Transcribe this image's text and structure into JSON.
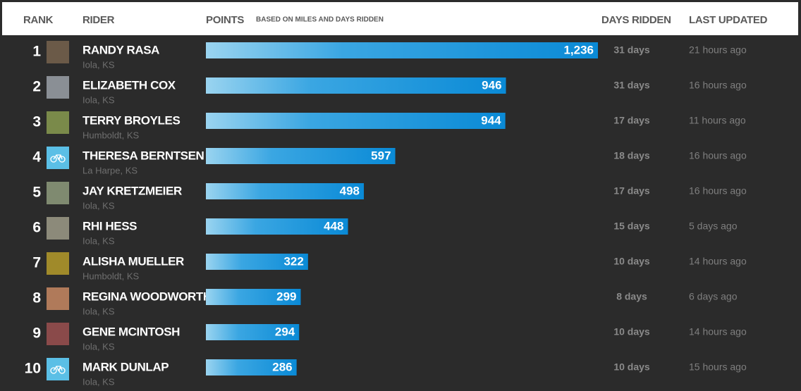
{
  "header": {
    "rank": "RANK",
    "rider": "RIDER",
    "points": "POINTS",
    "points_note": "BASED ON MILES AND DAYS RIDDEN",
    "days": "DAYS RIDDEN",
    "updated": "LAST UPDATED"
  },
  "table": {
    "rows": [
      {
        "rank": 1,
        "name": "RANDY RASA",
        "location": "Iola, KS",
        "points": {
          "value": 1236,
          "label": "1,236"
        },
        "days": "31 days",
        "updated": "21 hours ago"
      },
      {
        "rank": 2,
        "name": "ELIZABETH COX",
        "location": "Iola, KS",
        "points": 946,
        "days": "31 days",
        "updated": "16 hours ago"
      },
      {
        "rank": 3,
        "name": "TERRY BROYLES",
        "location": "Humboldt, KS",
        "points": 944,
        "days": "17 days",
        "updated": "11 hours ago"
      },
      {
        "rank": 4,
        "name": "THERESA BERNTSEN",
        "location": "La Harpe, KS",
        "points": 597,
        "days": "18 days",
        "updated": "16 hours ago"
      },
      {
        "rank": 5,
        "name": "JAY KRETZMEIER",
        "location": "Iola, KS",
        "points": 498,
        "days": "17 days",
        "updated": "16 hours ago"
      },
      {
        "rank": 6,
        "name": "RHI HESS",
        "location": "Iola, KS",
        "points": 448,
        "days": "15 days",
        "updated": "5 days ago"
      },
      {
        "rank": 7,
        "name": "ALISHA MUELLER",
        "location": "Humboldt, KS",
        "points": 322,
        "days": "10 days",
        "updated": "14 hours ago"
      },
      {
        "rank": 8,
        "name": "REGINA WOODWORTH",
        "location": "Iola, KS",
        "points": 299,
        "days": "8 days",
        "updated": "6 days ago"
      },
      {
        "rank": 9,
        "name": "GENE MCINTOSH",
        "location": "Iola, KS",
        "points": 294,
        "days": "10 days",
        "updated": "14 hours ago"
      },
      {
        "rank": 10,
        "name": "MARK DUNLAP",
        "location": "Iola, KS",
        "points": 286,
        "days": "10 days",
        "updated": "15 hours ago"
      }
    ]
  }
}
